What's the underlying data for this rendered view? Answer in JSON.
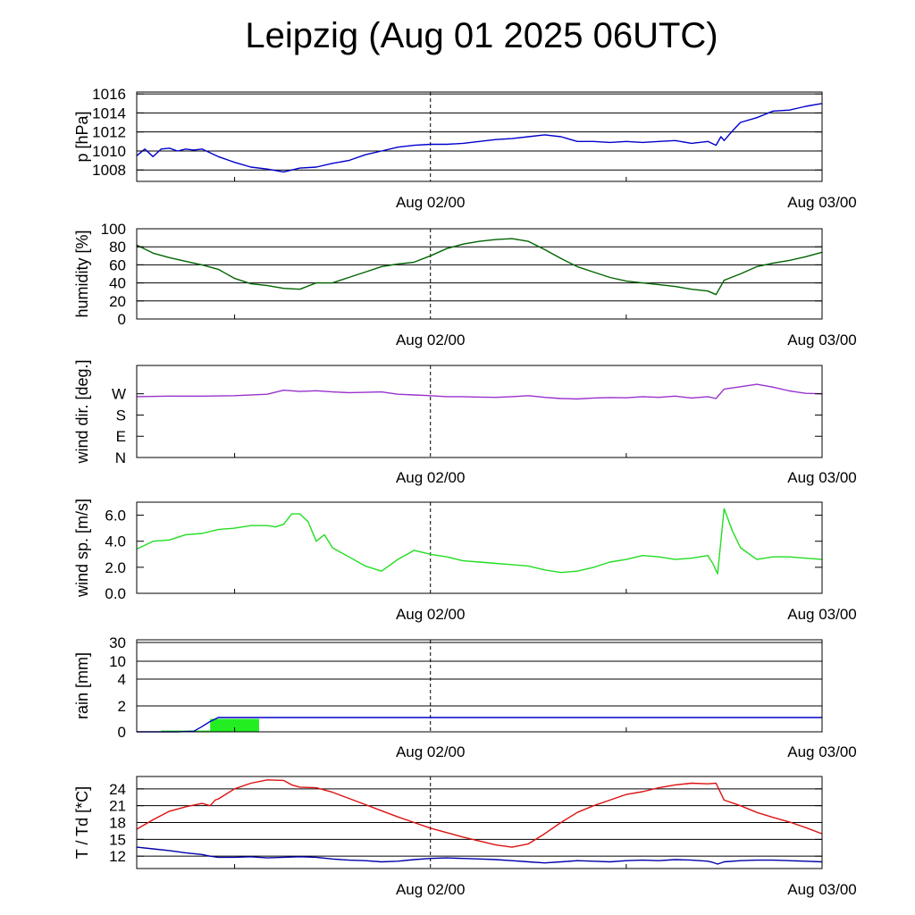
{
  "title": "Leipzig (Aug 01 2025 06UTC)",
  "chart_data": [
    {
      "type": "line",
      "ylabel": "p [hPa]",
      "ylim": [
        1006.8,
        1016.2
      ],
      "yticks": [
        1008,
        1010,
        1012,
        1014,
        1016
      ],
      "ytick_labels": [
        "1008",
        "1010",
        "1012",
        "1014",
        "1016"
      ],
      "hgrid": true,
      "xlim": [
        6,
        48
      ],
      "xtick_labels": [
        "Aug 02/00",
        "Aug 03/00"
      ],
      "series": [
        {
          "color": "#0000cc",
          "x": [
            6,
            6.5,
            7,
            7.5,
            8,
            8.5,
            9,
            9.5,
            10,
            11,
            12,
            13,
            14,
            15,
            16,
            17,
            18,
            19,
            20,
            21,
            22,
            23,
            24,
            25,
            26,
            27,
            28,
            29,
            30,
            31,
            32,
            33,
            34,
            35,
            36,
            37,
            38,
            39,
            40,
            41,
            41.5,
            41.8,
            42,
            42.5,
            43,
            44,
            45,
            46,
            47,
            48
          ],
          "y": [
            1009.5,
            1010.2,
            1009.4,
            1010.2,
            1010.3,
            1010.0,
            1010.2,
            1010.1,
            1010.2,
            1009.4,
            1008.8,
            1008.3,
            1008.1,
            1007.8,
            1008.2,
            1008.3,
            1008.7,
            1009.0,
            1009.6,
            1010.0,
            1010.4,
            1010.6,
            1010.7,
            1010.7,
            1010.8,
            1011.0,
            1011.2,
            1011.3,
            1011.5,
            1011.7,
            1011.5,
            1011.0,
            1011.0,
            1010.9,
            1011.0,
            1010.9,
            1011.0,
            1011.1,
            1010.8,
            1011.0,
            1010.6,
            1011.5,
            1011.1,
            1012.1,
            1013.0,
            1013.5,
            1014.2,
            1014.3,
            1014.7,
            1015.0
          ]
        }
      ]
    },
    {
      "type": "line",
      "ylabel": "humidity [%]",
      "ylim": [
        0,
        100
      ],
      "yticks": [
        0,
        20,
        40,
        60,
        80,
        100
      ],
      "ytick_labels": [
        "0",
        "20",
        "40",
        "60",
        "80",
        "100"
      ],
      "hgrid": true,
      "xlim": [
        6,
        48
      ],
      "xtick_labels": [
        "Aug 02/00",
        "Aug 03/00"
      ],
      "series": [
        {
          "color": "#006400",
          "x": [
            6,
            7,
            8,
            9,
            10,
            11,
            12,
            13,
            14,
            15,
            16,
            17,
            18,
            19,
            20,
            21,
            22,
            23,
            24,
            25,
            26,
            27,
            28,
            29,
            30,
            31,
            32,
            33,
            34,
            35,
            36,
            37,
            38,
            39,
            40,
            41,
            41.5,
            42,
            43,
            44,
            45,
            46,
            47,
            48
          ],
          "y": [
            82,
            73,
            68,
            64,
            60,
            55,
            45,
            39,
            37,
            34,
            33,
            40,
            40,
            46,
            52,
            58,
            61,
            63,
            70,
            78,
            83,
            86,
            88,
            89,
            86,
            77,
            67,
            58,
            52,
            46,
            42,
            40,
            38,
            36,
            33,
            31,
            27,
            43,
            50,
            58,
            62,
            65,
            69,
            74
          ]
        }
      ]
    },
    {
      "type": "line",
      "ylabel": "wind dir. [deg.]",
      "ylim": [
        0,
        390
      ],
      "yticks": [
        0,
        90,
        180,
        270
      ],
      "ytick_labels": [
        "N",
        "E",
        "S",
        "W"
      ],
      "hgrid": false,
      "xlim": [
        6,
        48
      ],
      "xtick_labels": [
        "Aug 02/00",
        "Aug 03/00"
      ],
      "series": [
        {
          "color": "#9932cc",
          "x": [
            6,
            8,
            10,
            12,
            14,
            15,
            16,
            17,
            18,
            19,
            20,
            21,
            22,
            23,
            24,
            25,
            26,
            27,
            28,
            29,
            30,
            31,
            32,
            33,
            34,
            35,
            36,
            37,
            38,
            39,
            40,
            41,
            41.5,
            42,
            43,
            44,
            45,
            46,
            47,
            48
          ],
          "y": [
            258,
            260,
            260,
            262,
            268,
            285,
            280,
            283,
            278,
            275,
            276,
            278,
            268,
            265,
            262,
            258,
            258,
            256,
            255,
            258,
            262,
            255,
            250,
            248,
            252,
            254,
            253,
            258,
            255,
            260,
            252,
            258,
            250,
            290,
            300,
            310,
            298,
            282,
            272,
            270
          ]
        }
      ]
    },
    {
      "type": "line",
      "ylabel": "wind sp. [m/s]",
      "ylim": [
        0,
        7
      ],
      "yticks": [
        0,
        2,
        4,
        6
      ],
      "ytick_labels": [
        "0.0",
        "2.0",
        "4.0",
        "6.0"
      ],
      "hgrid": false,
      "xlim": [
        6,
        48
      ],
      "xtick_labels": [
        "Aug 02/00",
        "Aug 03/00"
      ],
      "series": [
        {
          "color": "#22dd22",
          "x": [
            6,
            7,
            8,
            9,
            10,
            11,
            12,
            13,
            14,
            14.5,
            15,
            15.5,
            16,
            16.5,
            17,
            17.5,
            18,
            19,
            20,
            21,
            22,
            23,
            24,
            25,
            26,
            27,
            28,
            29,
            30,
            31,
            32,
            33,
            34,
            35,
            36,
            37,
            38,
            39,
            40,
            41,
            41.3,
            41.6,
            42,
            42.5,
            43,
            44,
            45,
            46,
            47,
            48
          ],
          "y": [
            3.4,
            4.0,
            4.1,
            4.5,
            4.6,
            4.9,
            5.0,
            5.2,
            5.2,
            5.1,
            5.3,
            6.1,
            6.1,
            5.5,
            4.0,
            4.5,
            3.5,
            2.8,
            2.1,
            1.7,
            2.6,
            3.3,
            3.0,
            2.8,
            2.5,
            2.4,
            2.3,
            2.2,
            2.1,
            1.8,
            1.6,
            1.7,
            2.0,
            2.4,
            2.6,
            2.9,
            2.8,
            2.6,
            2.7,
            2.9,
            2.3,
            1.5,
            6.5,
            4.8,
            3.5,
            2.6,
            2.8,
            2.8,
            2.7,
            2.6
          ]
        }
      ]
    },
    {
      "type": "bar",
      "ylabel": "rain [mm]",
      "ylim": [
        0,
        30
      ],
      "yticks": [
        0,
        2,
        4,
        10,
        30
      ],
      "ytick_labels": [
        "0",
        "2",
        "4",
        "10",
        "30"
      ],
      "yscale": "nonlinear",
      "hgrid": true,
      "xlim": [
        6,
        48
      ],
      "xtick_labels": [
        "Aug 02/00",
        "Aug 03/00"
      ],
      "bars": [
        {
          "x0": 7.5,
          "x1": 10.5,
          "value": 0.1,
          "color": "#22ee22"
        },
        {
          "x0": 10.5,
          "x1": 13.5,
          "value": 1.0,
          "color": "#22ee22"
        }
      ],
      "series": [
        {
          "color": "#0000cc",
          "x": [
            6,
            8.5,
            9.5,
            10,
            10.5,
            11,
            12,
            24,
            48
          ],
          "y": [
            0,
            0,
            0.05,
            0.4,
            0.8,
            1.1,
            1.1,
            1.1,
            1.1
          ]
        }
      ]
    },
    {
      "type": "line",
      "ylabel": "T / Td [*C]",
      "ylim": [
        9.8,
        26.2
      ],
      "yticks": [
        12,
        15,
        18,
        21,
        24
      ],
      "ytick_labels": [
        "12",
        "15",
        "18",
        "21",
        "24"
      ],
      "hgrid": true,
      "xlim": [
        6,
        48
      ],
      "xtick_labels": [
        "Aug 02/00",
        "Aug 03/00"
      ],
      "series": [
        {
          "color": "#dd1111",
          "x": [
            6,
            7,
            8,
            9,
            10,
            10.5,
            10.8,
            11,
            12,
            13,
            14,
            15,
            15.5,
            16,
            17,
            18,
            19,
            20,
            21,
            22,
            23,
            24,
            25,
            26,
            27,
            28,
            29,
            30,
            31,
            32,
            33,
            34,
            35,
            36,
            37,
            38,
            39,
            40,
            41,
            41.5,
            42,
            43,
            44,
            45,
            46,
            47,
            48
          ],
          "y": [
            16.8,
            18.5,
            20.0,
            20.8,
            21.4,
            21.0,
            22.0,
            22.2,
            24.0,
            25.0,
            25.6,
            25.5,
            24.7,
            24.3,
            24.2,
            23.4,
            22.3,
            21.2,
            20.1,
            19.0,
            18.0,
            17.0,
            16.2,
            15.4,
            14.7,
            14.0,
            13.6,
            14.2,
            16.0,
            18.0,
            19.8,
            21.0,
            22.0,
            23.0,
            23.5,
            24.2,
            24.7,
            25.0,
            24.9,
            25.0,
            22.0,
            21.0,
            19.8,
            18.9,
            18.1,
            17.1,
            16.0
          ]
        },
        {
          "color": "#0000aa",
          "x": [
            6,
            7,
            8,
            9,
            10,
            10.5,
            11,
            12,
            13,
            14,
            15,
            16,
            17,
            18,
            19,
            20,
            21,
            22,
            23,
            24,
            25,
            26,
            27,
            28,
            29,
            30,
            31,
            32,
            33,
            34,
            35,
            36,
            37,
            38,
            39,
            40,
            41,
            41.3,
            41.6,
            42,
            43,
            44,
            45,
            46,
            47,
            48
          ],
          "y": [
            13.6,
            13.3,
            13.0,
            12.6,
            12.3,
            12.0,
            11.8,
            11.8,
            11.9,
            11.7,
            11.8,
            11.9,
            11.8,
            11.5,
            11.3,
            11.2,
            11.0,
            11.1,
            11.4,
            11.6,
            11.7,
            11.6,
            11.5,
            11.4,
            11.2,
            11.0,
            10.8,
            11.0,
            11.2,
            11.1,
            11.0,
            11.2,
            11.3,
            11.2,
            11.4,
            11.3,
            11.1,
            10.9,
            10.6,
            11.0,
            11.2,
            11.3,
            11.3,
            11.2,
            11.1,
            11.0
          ]
        }
      ]
    }
  ]
}
